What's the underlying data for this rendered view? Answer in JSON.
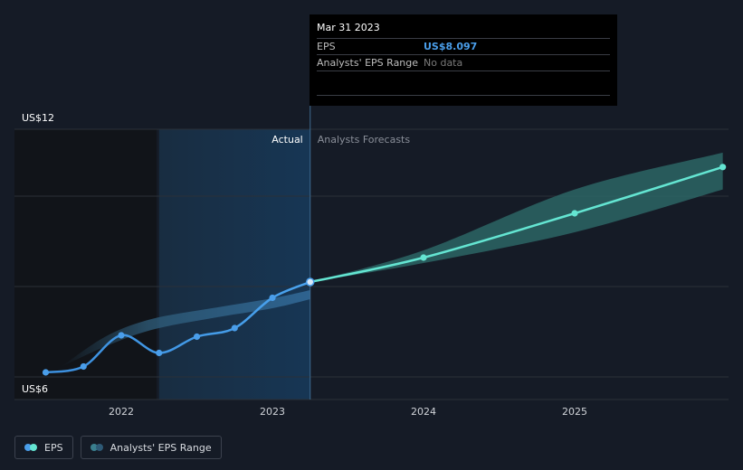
{
  "tooltip": {
    "date": "Mar 31 2023",
    "rows": [
      {
        "label": "EPS",
        "value": "US$8.097"
      },
      {
        "label": "Analysts' EPS Range",
        "value": "No data"
      }
    ]
  },
  "legend": [
    {
      "label": "EPS",
      "color_a": "#4a9eea",
      "color_b": "#64e5d2"
    },
    {
      "label": "Analysts' EPS Range",
      "color_a": "#3a7f8e",
      "color_b": "#2e5a76"
    }
  ],
  "chart_data": {
    "type": "line",
    "y_label_top": "US$12",
    "y_label_bottom": "US$6",
    "ylim": [
      6,
      12
    ],
    "xlim": [
      2021.5,
      2025.98
    ],
    "x_ticks": [
      {
        "value": 2022,
        "label": "2022"
      },
      {
        "value": 2023,
        "label": "2023"
      },
      {
        "value": 2024,
        "label": "2024"
      },
      {
        "value": 2025,
        "label": "2025"
      }
    ],
    "grid_values": [
      8,
      10
    ],
    "actual_label": "Actual",
    "forecast_label": "Analysts Forecasts",
    "past_region_start": 2022.25,
    "divider_x": 2023.25,
    "series": [
      {
        "name": "EPS",
        "color": "#4a9eea",
        "points": [
          {
            "x": 2021.5,
            "y": 6.1
          },
          {
            "x": 2021.75,
            "y": 6.23
          },
          {
            "x": 2022.0,
            "y": 6.92
          },
          {
            "x": 2022.25,
            "y": 6.53
          },
          {
            "x": 2022.5,
            "y": 6.89
          },
          {
            "x": 2022.75,
            "y": 7.08
          },
          {
            "x": 2023.0,
            "y": 7.75
          },
          {
            "x": 2023.25,
            "y": 8.1
          }
        ]
      },
      {
        "name": "EPS",
        "color": "#64e5d2",
        "points": [
          {
            "x": 2023.25,
            "y": 8.1
          },
          {
            "x": 2024.0,
            "y": 8.64
          },
          {
            "x": 2025.0,
            "y": 9.62
          },
          {
            "x": 2025.98,
            "y": 10.87
          }
        ]
      }
    ],
    "past_range": {
      "color": "#2e5a76",
      "x": [
        2021.6,
        2021.9,
        2022.2,
        2022.6,
        2023.0,
        2023.25
      ],
      "upper": [
        6.22,
        6.9,
        7.28,
        7.52,
        7.74,
        7.92
      ],
      "lower": [
        6.22,
        6.68,
        7.04,
        7.3,
        7.52,
        7.72
      ]
    },
    "forecast_range": {
      "color": "#2e6b6a",
      "x": [
        2023.25,
        2024.0,
        2025.0,
        2025.98
      ],
      "upper": [
        8.1,
        8.8,
        10.2,
        11.3
      ],
      "lower": [
        8.1,
        8.52,
        9.2,
        10.2
      ]
    }
  }
}
